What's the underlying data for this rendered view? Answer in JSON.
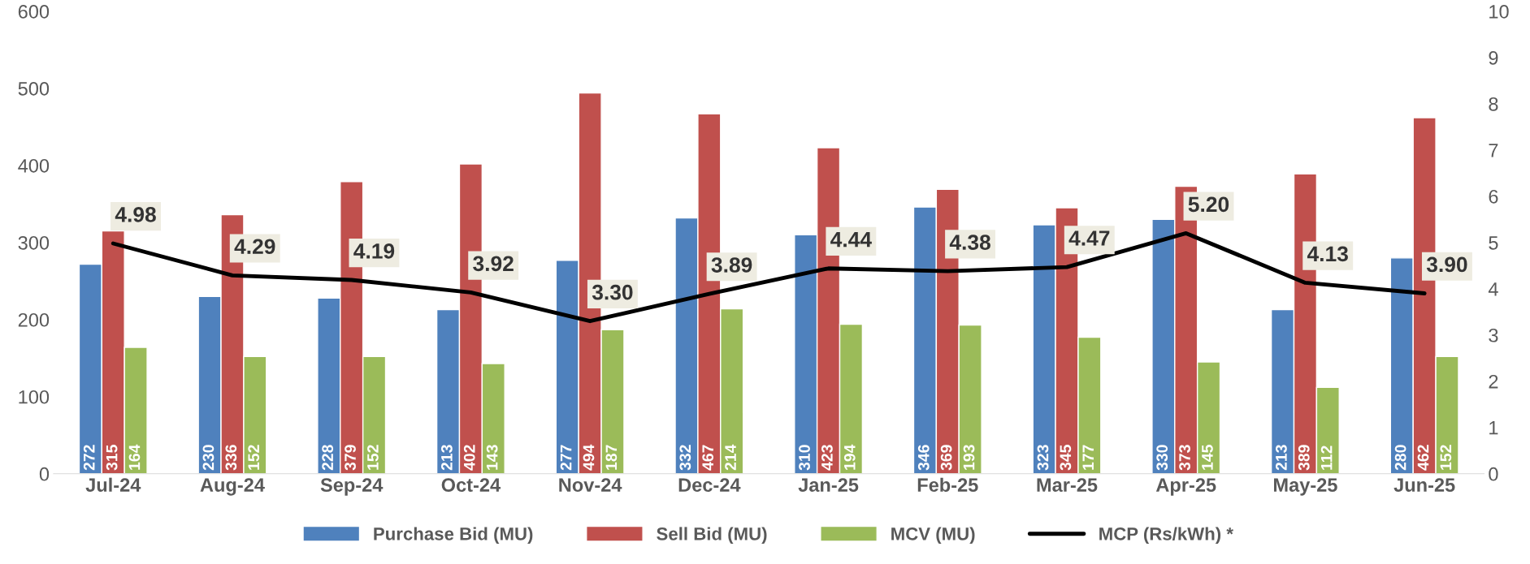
{
  "chart_data": {
    "type": "bar",
    "categories": [
      "Jul-24",
      "Aug-24",
      "Sep-24",
      "Oct-24",
      "Nov-24",
      "Dec-24",
      "Jan-25",
      "Feb-25",
      "Mar-25",
      "Apr-25",
      "May-25",
      "Jun-25"
    ],
    "series": [
      {
        "name": "Purchase Bid (MU)",
        "color": "#4f81bd",
        "values": [
          272,
          230,
          228,
          213,
          277,
          332,
          310,
          346,
          323,
          330,
          213,
          280
        ]
      },
      {
        "name": "Sell Bid (MU)",
        "color": "#c0504d",
        "values": [
          315,
          336,
          379,
          402,
          494,
          467,
          423,
          369,
          345,
          373,
          389,
          462
        ]
      },
      {
        "name": "MCV (MU)",
        "color": "#9bbb59",
        "values": [
          164,
          152,
          152,
          143,
          187,
          214,
          194,
          193,
          177,
          145,
          112,
          152
        ]
      },
      {
        "name": "MCP (Rs/kWh) *",
        "color": "#000000",
        "type": "line",
        "axis": "y2",
        "values": [
          4.98,
          4.29,
          4.19,
          3.92,
          3.3,
          3.89,
          4.44,
          4.38,
          4.47,
          5.2,
          4.13,
          3.9
        ],
        "value_labels": [
          "4.98",
          "4.29",
          "4.19",
          "3.92",
          "3.30",
          "3.89",
          "4.44",
          "4.38",
          "4.47",
          "5.20",
          "4.13",
          "3.90"
        ]
      }
    ],
    "ylim": [
      0,
      600
    ],
    "yticks": [
      0,
      100,
      200,
      300,
      400,
      500,
      600
    ],
    "y2lim": [
      0,
      10
    ],
    "y2ticks": [
      0,
      1,
      2,
      3,
      4,
      5,
      6,
      7,
      8,
      9,
      10
    ],
    "data_labels": true,
    "legend": "bottom",
    "grid": false
  }
}
